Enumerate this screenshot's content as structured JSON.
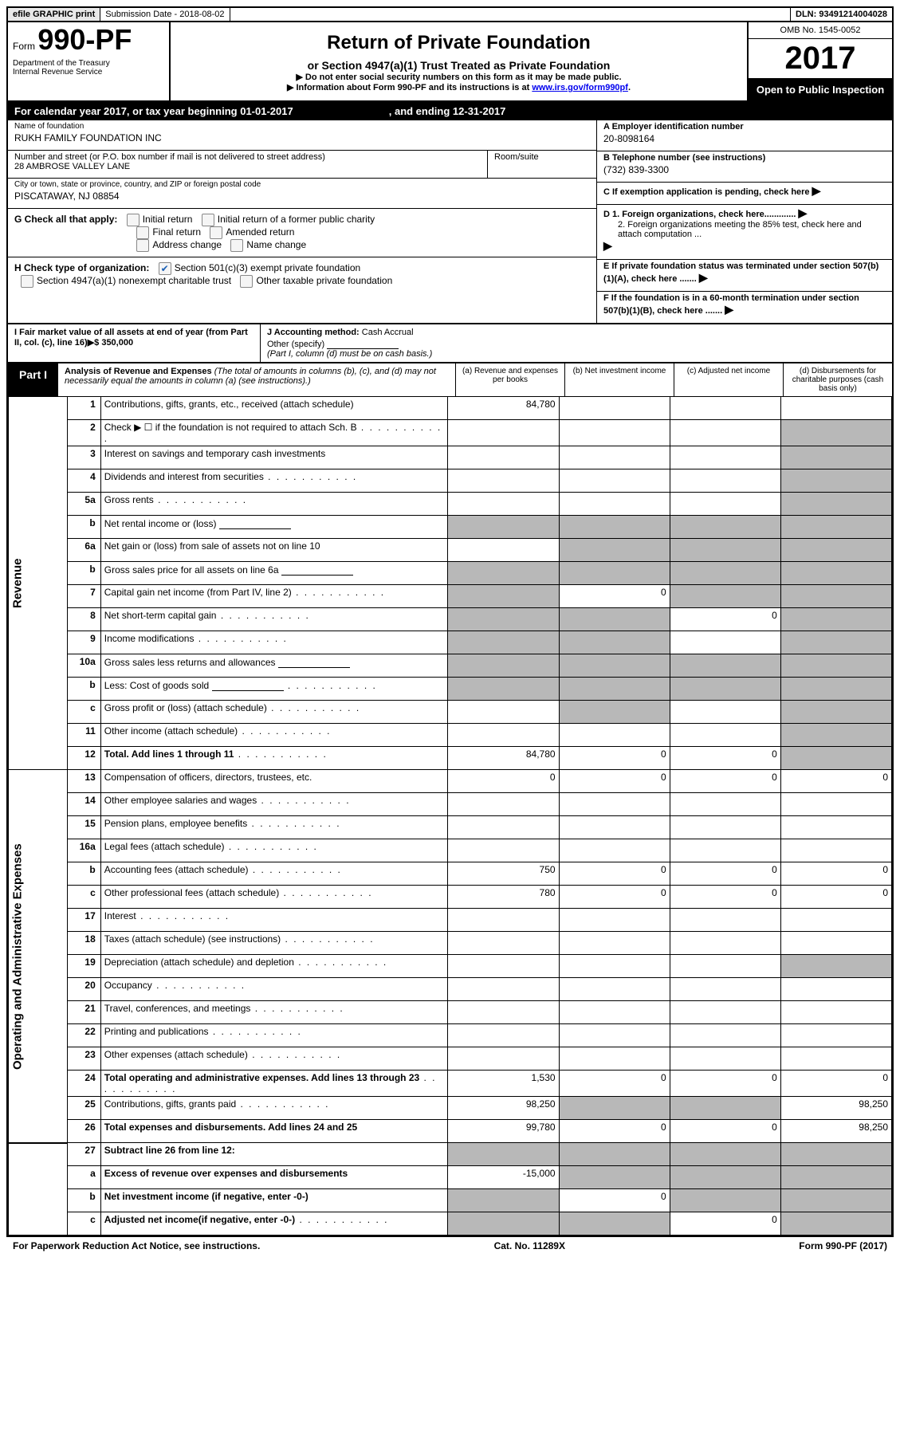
{
  "top": {
    "efile": "efile GRAPHIC print",
    "submission": "Submission Date - 2018-08-02",
    "dln": "DLN: 93491214004028"
  },
  "header": {
    "form_label": "Form",
    "form_number": "990-PF",
    "dept": "Department of the Treasury",
    "irs": "Internal Revenue Service",
    "title": "Return of Private Foundation",
    "subtitle": "or Section 4947(a)(1) Trust Treated as Private Foundation",
    "note1": "▶ Do not enter social security numbers on this form as it may be made public.",
    "note2_pre": "▶ Information about Form 990-PF and its instructions is at ",
    "note2_link": "www.irs.gov/form990pf",
    "omb": "OMB No. 1545-0052",
    "year": "2017",
    "open": "Open to Public Inspection"
  },
  "calendar": {
    "text1": "For calendar year 2017, or tax year beginning 01-01-2017",
    "text2": ", and ending 12-31-2017"
  },
  "entity": {
    "name_label": "Name of foundation",
    "name": "RUKH FAMILY FOUNDATION INC",
    "addr_label": "Number and street (or P.O. box number if mail is not delivered to street address)",
    "addr": "28 AMBROSE VALLEY LANE",
    "room_label": "Room/suite",
    "city_label": "City or town, state or province, country, and ZIP or foreign postal code",
    "city": "PISCATAWAY, NJ  08854",
    "ein_label": "A Employer identification number",
    "ein": "20-8098164",
    "tel_label": "B Telephone number (see instructions)",
    "tel": "(732) 839-3300",
    "c_label": "C If exemption application is pending, check here",
    "d1": "D 1. Foreign organizations, check here.............",
    "d2": "2. Foreign organizations meeting the 85% test, check here and attach computation ...",
    "e_label": "E  If private foundation status was terminated under section 507(b)(1)(A), check here .......",
    "f_label": "F  If the foundation is in a 60-month termination under section 507(b)(1)(B), check here .......",
    "g_label": "G Check all that apply:",
    "g_initial": "Initial return",
    "g_initial_former": "Initial return of a former public charity",
    "g_final": "Final return",
    "g_amended": "Amended return",
    "g_address": "Address change",
    "g_name": "Name change",
    "h_label": "H Check type of organization:",
    "h_501c3": "Section 501(c)(3) exempt private foundation",
    "h_4947": "Section 4947(a)(1) nonexempt charitable trust",
    "h_other": "Other taxable private foundation",
    "i_label": "I Fair market value of all assets at end of year (from Part II, col. (c), line 16)▶$  350,000",
    "j_label": "J Accounting method:",
    "j_cash": "Cash",
    "j_accrual": "Accrual",
    "j_other": "Other (specify)",
    "j_note": "(Part I, column (d) must be on cash basis.)"
  },
  "part1": {
    "label": "Part I",
    "title": "Analysis of Revenue and Expenses",
    "note": "(The total of amounts in columns (b), (c), and (d) may not necessarily equal the amounts in column (a) (see instructions).)",
    "col_a": "(a)   Revenue and expenses per books",
    "col_b": "(b)  Net investment income",
    "col_c": "(c)  Adjusted net income",
    "col_d": "(d)  Disbursements for charitable purposes (cash basis only)",
    "revenue_label": "Revenue",
    "expenses_label": "Operating and Administrative Expenses"
  },
  "rows": [
    {
      "n": "1",
      "d": "Contributions, gifts, grants, etc., received (attach schedule)",
      "a": "84,780",
      "b": "",
      "c": "",
      "dd": ""
    },
    {
      "n": "2",
      "d": "Check ▶ ☐ if the foundation is not required to attach Sch. B",
      "dots": true,
      "a": "",
      "b": "",
      "c": "",
      "dd": "",
      "grey_d": true
    },
    {
      "n": "3",
      "d": "Interest on savings and temporary cash investments",
      "a": "",
      "b": "",
      "c": "",
      "dd": "",
      "grey_d": true
    },
    {
      "n": "4",
      "d": "Dividends and interest from securities",
      "dots": true,
      "a": "",
      "b": "",
      "c": "",
      "dd": "",
      "grey_d": true
    },
    {
      "n": "5a",
      "d": "Gross rents",
      "dots": true,
      "a": "",
      "b": "",
      "c": "",
      "dd": "",
      "grey_d": true
    },
    {
      "n": "b",
      "d": "Net rental income or (loss)",
      "input": true,
      "grey_all": true
    },
    {
      "n": "6a",
      "d": "Net gain or (loss) from sale of assets not on line 10",
      "a": "",
      "grey_bcd": true
    },
    {
      "n": "b",
      "d": "Gross sales price for all assets on line 6a",
      "input": true,
      "grey_all": true
    },
    {
      "n": "7",
      "d": "Capital gain net income (from Part IV, line 2)",
      "dots": true,
      "grey_a": true,
      "b": "0",
      "grey_cd": true
    },
    {
      "n": "8",
      "d": "Net short-term capital gain",
      "dots": true,
      "grey_ab": true,
      "c": "0",
      "grey_d": true
    },
    {
      "n": "9",
      "d": "Income modifications",
      "dots": true,
      "grey_ab": true,
      "c": "",
      "grey_d": true
    },
    {
      "n": "10a",
      "d": "Gross sales less returns and allowances",
      "input": true,
      "grey_all": true
    },
    {
      "n": "b",
      "d": "Less: Cost of goods sold",
      "dots": true,
      "input": true,
      "grey_all": true
    },
    {
      "n": "c",
      "d": "Gross profit or (loss) (attach schedule)",
      "dots": true,
      "a": "",
      "grey_b": true,
      "c": "",
      "grey_d": true
    },
    {
      "n": "11",
      "d": "Other income (attach schedule)",
      "dots": true,
      "a": "",
      "b": "",
      "c": "",
      "grey_d": true
    },
    {
      "n": "12",
      "d": "Total. Add lines 1 through 11",
      "bold": true,
      "dots": true,
      "a": "84,780",
      "b": "0",
      "c": "0",
      "grey_d": true
    }
  ],
  "exp_rows": [
    {
      "n": "13",
      "d": "Compensation of officers, directors, trustees, etc.",
      "a": "0",
      "b": "0",
      "c": "0",
      "dd": "0"
    },
    {
      "n": "14",
      "d": "Other employee salaries and wages",
      "dots": true
    },
    {
      "n": "15",
      "d": "Pension plans, employee benefits",
      "dots": true
    },
    {
      "n": "16a",
      "d": "Legal fees (attach schedule)",
      "dots": true
    },
    {
      "n": "b",
      "d": "Accounting fees (attach schedule)",
      "dots": true,
      "a": "750",
      "b": "0",
      "c": "0",
      "dd": "0"
    },
    {
      "n": "c",
      "d": "Other professional fees (attach schedule)",
      "dots": true,
      "a": "780",
      "b": "0",
      "c": "0",
      "dd": "0"
    },
    {
      "n": "17",
      "d": "Interest",
      "dots": true
    },
    {
      "n": "18",
      "d": "Taxes (attach schedule) (see instructions)",
      "dots": true
    },
    {
      "n": "19",
      "d": "Depreciation (attach schedule) and depletion",
      "dots": true,
      "grey_d": true
    },
    {
      "n": "20",
      "d": "Occupancy",
      "dots": true
    },
    {
      "n": "21",
      "d": "Travel, conferences, and meetings",
      "dots": true
    },
    {
      "n": "22",
      "d": "Printing and publications",
      "dots": true
    },
    {
      "n": "23",
      "d": "Other expenses (attach schedule)",
      "dots": true
    },
    {
      "n": "24",
      "d": "Total operating and administrative expenses. Add lines 13 through 23",
      "bold": true,
      "dots": true,
      "a": "1,530",
      "b": "0",
      "c": "0",
      "dd": "0"
    },
    {
      "n": "25",
      "d": "Contributions, gifts, grants paid",
      "dots": true,
      "a": "98,250",
      "grey_bc": true,
      "dd": "98,250"
    },
    {
      "n": "26",
      "d": "Total expenses and disbursements. Add lines 24 and 25",
      "bold": true,
      "a": "99,780",
      "b": "0",
      "c": "0",
      "dd": "98,250"
    }
  ],
  "bottom_rows": [
    {
      "n": "27",
      "d": "Subtract line 26 from line 12:",
      "bold": true,
      "grey_all": true
    },
    {
      "n": "a",
      "d": "Excess of revenue over expenses and disbursements",
      "bold": true,
      "a": "-15,000",
      "grey_bcd": true
    },
    {
      "n": "b",
      "d": "Net investment income (if negative, enter -0-)",
      "bold": true,
      "grey_a": true,
      "b": "0",
      "grey_cd": true
    },
    {
      "n": "c",
      "d": "Adjusted net income(if negative, enter -0-)",
      "bold": true,
      "dots": true,
      "grey_ab": true,
      "c": "0",
      "grey_d": true
    }
  ],
  "footer": {
    "left": "For Paperwork Reduction Act Notice, see instructions.",
    "mid": "Cat. No. 11289X",
    "right": "Form 990-PF (2017)"
  }
}
